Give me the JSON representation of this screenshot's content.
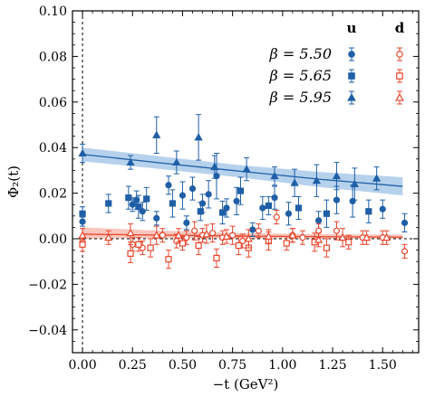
{
  "chart_data": {
    "type": "scatter",
    "xlabel": "−t (GeV²)",
    "ylabel": "Φ₂(t)",
    "xlim": [
      -0.05,
      1.68
    ],
    "ylim": [
      -0.05,
      0.1
    ],
    "x_ticks": [
      0.0,
      0.25,
      0.5,
      0.75,
      1.0,
      1.25,
      1.5
    ],
    "x_tick_labels": [
      "0.00",
      "0.25",
      "0.50",
      "0.75",
      "1.00",
      "1.25",
      "1.50"
    ],
    "y_ticks": [
      -0.04,
      -0.02,
      0.0,
      0.02,
      0.04,
      0.06,
      0.08,
      0.1
    ],
    "y_tick_labels": [
      "−0.04",
      "−0.02",
      "0.00",
      "0.02",
      "0.04",
      "0.06",
      "0.08",
      "0.10"
    ],
    "grid": false,
    "legend_placement": "top-right",
    "legend_columns": [
      "u",
      "d"
    ],
    "legend_rows": [
      "β = 5.50",
      "β = 5.65",
      "β = 5.95"
    ],
    "colors": {
      "u": "#1f5fa6",
      "d": "#e8452c",
      "u_band": "#9ec1e6",
      "d_band": "#f5b3a6"
    },
    "reference_lines": {
      "horizontal_y": 0.0,
      "vertical_x": 0.0
    },
    "bands": [
      {
        "name": "u fit",
        "color": "#1f5fa6",
        "x": [
          0.0,
          0.4,
          0.8,
          1.2,
          1.6
        ],
        "center": [
          0.037,
          0.0332,
          0.0295,
          0.026,
          0.023
        ],
        "lower": [
          0.034,
          0.0305,
          0.0268,
          0.0225,
          0.019
        ],
        "upper": [
          0.04,
          0.036,
          0.0322,
          0.0292,
          0.027
        ]
      },
      {
        "name": "d fit",
        "color": "#e8452c",
        "x": [
          0.0,
          0.4,
          0.8,
          1.2,
          1.6
        ],
        "center": [
          0.002,
          0.0016,
          0.0012,
          0.0009,
          0.0007
        ],
        "lower": [
          0.0,
          0.0003,
          0.0002,
          0.0001,
          0.0
        ],
        "upper": [
          0.005,
          0.0035,
          0.0025,
          0.002,
          0.0018
        ]
      }
    ],
    "series": [
      {
        "name": "u",
        "label": "β = 5.50",
        "marker": "circle",
        "filled": true,
        "color": "#1f5fa6",
        "points": [
          [
            0.0,
            0.0075,
            0.002
          ],
          [
            0.25,
            0.015,
            0.003
          ],
          [
            0.27,
            0.017,
            0.004
          ],
          [
            0.3,
            0.012,
            0.004
          ],
          [
            0.37,
            0.009,
            0.003
          ],
          [
            0.43,
            0.0235,
            0.004
          ],
          [
            0.5,
            0.019,
            0.006
          ],
          [
            0.52,
            0.007,
            0.003
          ],
          [
            0.55,
            0.022,
            0.005
          ],
          [
            0.6,
            0.0155,
            0.004
          ],
          [
            0.63,
            0.0195,
            0.006
          ],
          [
            0.67,
            0.0275,
            0.01
          ],
          [
            0.72,
            0.0135,
            0.004
          ],
          [
            0.77,
            0.0165,
            0.006
          ],
          [
            0.85,
            0.004,
            0.003
          ],
          [
            0.9,
            0.0135,
            0.005
          ],
          [
            0.96,
            0.018,
            0.005
          ],
          [
            1.03,
            0.011,
            0.005
          ],
          [
            1.18,
            0.008,
            0.004
          ],
          [
            1.27,
            0.017,
            0.006
          ],
          [
            1.35,
            0.0165,
            0.007
          ],
          [
            1.5,
            0.013,
            0.004
          ],
          [
            1.61,
            0.007,
            0.004
          ]
        ]
      },
      {
        "name": "u",
        "label": "β = 5.65",
        "marker": "square",
        "filled": true,
        "color": "#1f5fa6",
        "points": [
          [
            0.0,
            0.011,
            0.003
          ],
          [
            0.13,
            0.0155,
            0.004
          ],
          [
            0.23,
            0.018,
            0.005
          ],
          [
            0.28,
            0.014,
            0.005
          ],
          [
            0.32,
            0.0175,
            0.005
          ],
          [
            0.45,
            0.0155,
            0.006
          ],
          [
            0.59,
            0.012,
            0.004
          ],
          [
            0.7,
            0.0115,
            0.005
          ],
          [
            0.79,
            0.021,
            0.006
          ],
          [
            0.93,
            0.0145,
            0.004
          ],
          [
            1.08,
            0.0135,
            0.005
          ],
          [
            1.22,
            0.011,
            0.006
          ],
          [
            1.43,
            0.012,
            0.005
          ]
        ]
      },
      {
        "name": "u",
        "label": "β = 5.95",
        "marker": "triangle",
        "filled": true,
        "color": "#1f5fa6",
        "points": [
          [
            0.0,
            0.0375,
            0.004
          ],
          [
            0.24,
            0.0335,
            0.003
          ],
          [
            0.37,
            0.0455,
            0.008
          ],
          [
            0.47,
            0.0335,
            0.005
          ],
          [
            0.58,
            0.0445,
            0.01
          ],
          [
            0.66,
            0.0315,
            0.005
          ],
          [
            0.82,
            0.0305,
            0.005
          ],
          [
            0.96,
            0.0275,
            0.004
          ],
          [
            1.06,
            0.0245,
            0.006
          ],
          [
            1.17,
            0.0255,
            0.007
          ],
          [
            1.27,
            0.0275,
            0.006
          ],
          [
            1.36,
            0.024,
            0.007
          ],
          [
            1.47,
            0.0265,
            0.005
          ]
        ]
      },
      {
        "name": "d",
        "label": "β = 5.50",
        "marker": "circle",
        "filled": false,
        "color": "#e8452c",
        "points": [
          [
            0.0,
            -0.0015,
            0.002
          ],
          [
            0.25,
            -0.0025,
            0.003
          ],
          [
            0.3,
            -0.004,
            0.003
          ],
          [
            0.4,
            0.0015,
            0.003
          ],
          [
            0.47,
            -0.001,
            0.003
          ],
          [
            0.52,
            0.0005,
            0.003
          ],
          [
            0.56,
            0.0035,
            0.004
          ],
          [
            0.6,
            0.0015,
            0.003
          ],
          [
            0.65,
            0.0025,
            0.004
          ],
          [
            0.7,
            0.0005,
            0.003
          ],
          [
            0.75,
            0.0015,
            0.004
          ],
          [
            0.8,
            -0.001,
            0.003
          ],
          [
            0.88,
            0.0035,
            0.003
          ],
          [
            0.97,
            0.0095,
            0.003
          ],
          [
            1.05,
            0.0015,
            0.003
          ],
          [
            1.1,
            0.0005,
            0.003
          ],
          [
            1.18,
            0.0035,
            0.003
          ],
          [
            1.27,
            0.0035,
            0.004
          ],
          [
            1.4,
            0.0005,
            0.003
          ],
          [
            1.5,
            0.0005,
            0.003
          ],
          [
            1.61,
            -0.0055,
            0.003
          ]
        ]
      },
      {
        "name": "d",
        "label": "β = 5.65",
        "marker": "square",
        "filled": false,
        "color": "#e8452c",
        "points": [
          [
            0.0,
            -0.0025,
            0.003
          ],
          [
            0.24,
            -0.0065,
            0.004
          ],
          [
            0.28,
            -0.0025,
            0.003
          ],
          [
            0.34,
            -0.004,
            0.004
          ],
          [
            0.43,
            -0.009,
            0.004
          ],
          [
            0.5,
            -0.002,
            0.003
          ],
          [
            0.58,
            -0.003,
            0.004
          ],
          [
            0.67,
            -0.0085,
            0.004
          ],
          [
            0.78,
            -0.003,
            0.004
          ],
          [
            0.83,
            -0.004,
            0.004
          ],
          [
            0.93,
            -0.001,
            0.004
          ],
          [
            1.02,
            -0.002,
            0.003
          ],
          [
            1.16,
            -0.0015,
            0.004
          ],
          [
            1.22,
            -0.004,
            0.004
          ],
          [
            1.33,
            -0.0015,
            0.003
          ]
        ]
      },
      {
        "name": "d",
        "label": "β = 5.95",
        "marker": "triangle",
        "filled": false,
        "color": "#e8452c",
        "points": [
          [
            0.0,
            0.0015,
            0.003
          ],
          [
            0.13,
            0.0005,
            0.003
          ],
          [
            0.24,
            0.0025,
            0.004
          ],
          [
            0.37,
            0.0015,
            0.004
          ],
          [
            0.48,
            0.0015,
            0.003
          ],
          [
            0.62,
            0.002,
            0.004
          ],
          [
            0.72,
            0.001,
            0.003
          ],
          [
            0.83,
            0.0,
            0.004
          ],
          [
            0.93,
            0.001,
            0.003
          ],
          [
            1.05,
            0.0015,
            0.003
          ],
          [
            1.18,
            -0.0005,
            0.003
          ],
          [
            1.3,
            0.0005,
            0.004
          ],
          [
            1.42,
            0.0005,
            0.003
          ],
          [
            1.52,
            0.0005,
            0.003
          ]
        ]
      }
    ]
  }
}
